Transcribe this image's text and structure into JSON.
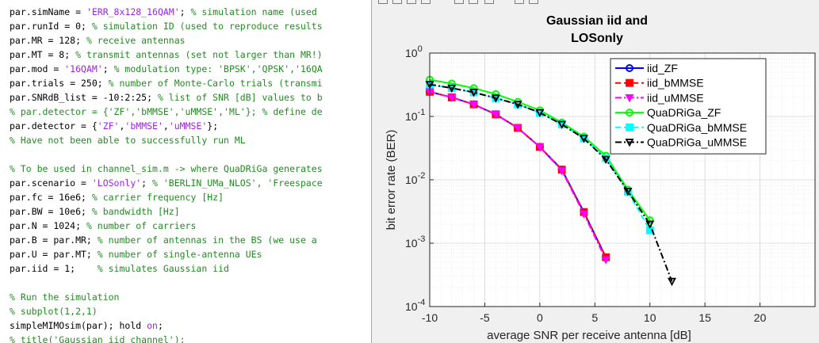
{
  "editor": {
    "lines": [
      {
        "segments": [
          {
            "t": "par.simName = ",
            "k": "code"
          },
          {
            "t": "'ERR_8x128_16QAM'",
            "k": "str"
          },
          {
            "t": "; ",
            "k": "code"
          },
          {
            "t": "% simulation name (used",
            "k": "com"
          }
        ]
      },
      {
        "segments": [
          {
            "t": "par.runId = 0; ",
            "k": "code"
          },
          {
            "t": "% simulation ID (used to reproduce results",
            "k": "com"
          }
        ]
      },
      {
        "segments": [
          {
            "t": "par.MR = 128; ",
            "k": "code"
          },
          {
            "t": "% receive antennas",
            "k": "com"
          }
        ]
      },
      {
        "segments": [
          {
            "t": "par.MT = 8; ",
            "k": "code"
          },
          {
            "t": "% transmit antennas (set not larger than MR!)",
            "k": "com"
          }
        ]
      },
      {
        "segments": [
          {
            "t": "par.mod = ",
            "k": "code"
          },
          {
            "t": "'16QAM'",
            "k": "str"
          },
          {
            "t": "; ",
            "k": "code"
          },
          {
            "t": "% modulation type: 'BPSK','QPSK','16QA",
            "k": "com"
          }
        ]
      },
      {
        "segments": [
          {
            "t": "par.trials = 250; ",
            "k": "code"
          },
          {
            "t": "% number of Monte-Carlo trials (transmi",
            "k": "com"
          }
        ]
      },
      {
        "segments": [
          {
            "t": "par.SNRdB_list = -10:2:25; ",
            "k": "code"
          },
          {
            "t": "% list of SNR [dB] values to b",
            "k": "com"
          }
        ]
      },
      {
        "segments": [
          {
            "t": "% par.detector = {'ZF','bMMSE','uMMSE','ML'}; % define de",
            "k": "com"
          }
        ]
      },
      {
        "segments": [
          {
            "t": "par.detector = {",
            "k": "code"
          },
          {
            "t": "'ZF'",
            "k": "str"
          },
          {
            "t": ",",
            "k": "code"
          },
          {
            "t": "'bMMSE'",
            "k": "str"
          },
          {
            "t": ",",
            "k": "code"
          },
          {
            "t": "'uMMSE'",
            "k": "str"
          },
          {
            "t": "};",
            "k": "code"
          }
        ]
      },
      {
        "segments": [
          {
            "t": "% Have not been able to successfully run ML",
            "k": "com"
          }
        ]
      },
      {
        "segments": []
      },
      {
        "segments": [
          {
            "t": "% To be used in channel_sim.m -> where QuaDRiGa generates",
            "k": "com"
          }
        ]
      },
      {
        "segments": [
          {
            "t": "par.scenario = ",
            "k": "code"
          },
          {
            "t": "'LOSonly'",
            "k": "str"
          },
          {
            "t": "; ",
            "k": "code"
          },
          {
            "t": "% 'BERLIN_UMa_NLOS', 'Freespace",
            "k": "com"
          }
        ]
      },
      {
        "segments": [
          {
            "t": "par.fc = 16e6; ",
            "k": "code"
          },
          {
            "t": "% carrier frequency [Hz]",
            "k": "com"
          }
        ]
      },
      {
        "segments": [
          {
            "t": "par.BW = 10e6; ",
            "k": "code"
          },
          {
            "t": "% bandwidth [Hz]",
            "k": "com"
          }
        ]
      },
      {
        "segments": [
          {
            "t": "par.N = 1024; ",
            "k": "code"
          },
          {
            "t": "% number of carriers",
            "k": "com"
          }
        ]
      },
      {
        "segments": [
          {
            "t": "par.B = par.MR; ",
            "k": "code"
          },
          {
            "t": "% number of antennas in the BS (we use a",
            "k": "com"
          }
        ]
      },
      {
        "segments": [
          {
            "t": "par.U = par.MT; ",
            "k": "code"
          },
          {
            "t": "% number of single-antenna UEs",
            "k": "com"
          }
        ]
      },
      {
        "segments": [
          {
            "t": "par.iid = 1;    ",
            "k": "code"
          },
          {
            "t": "% simulates Gaussian iid",
            "k": "com"
          }
        ]
      },
      {
        "segments": []
      },
      {
        "segments": [
          {
            "t": "% Run the simulation",
            "k": "com"
          }
        ]
      },
      {
        "segments": [
          {
            "t": "% subplot(1,2,1)",
            "k": "com"
          }
        ]
      },
      {
        "segments": [
          {
            "t": "simpleMIMOsim(par); hold ",
            "k": "code"
          },
          {
            "t": "on",
            "k": "str"
          },
          {
            "t": ";",
            "k": "code"
          }
        ]
      },
      {
        "segments": [
          {
            "t": "% title('Gaussian iid channel');",
            "k": "com"
          }
        ]
      }
    ]
  },
  "figure": {
    "toolbar_icons": [
      "print-icon",
      "open-icon",
      "save-icon",
      "link-icon",
      "zoom-icon",
      "pointer-icon",
      "data-cursor-icon",
      "rotate-icon",
      "figure-icon"
    ]
  },
  "chart_data": {
    "type": "line",
    "title": [
      "Gaussian iid and",
      "LOSonly"
    ],
    "xlabel": "average SNR per receive antenna [dB]",
    "ylabel": "bit error rate (BER)",
    "xlim": [
      -10,
      25
    ],
    "ylim": [
      0.0001,
      1
    ],
    "yscale": "log",
    "grid": true,
    "minor_grid": true,
    "legend_position": "top-right",
    "x_ticks": [
      -10,
      -5,
      0,
      5,
      10,
      15,
      20
    ],
    "x_tick_labels": [
      "-10",
      "-5",
      "0",
      "5",
      "10",
      "15",
      "20"
    ],
    "y_ticks": [
      0.0001,
      0.001,
      0.01,
      0.1,
      1
    ],
    "y_tick_labels": [
      {
        "base": "10",
        "exp": "-4"
      },
      {
        "base": "10",
        "exp": "-3"
      },
      {
        "base": "10",
        "exp": "-2"
      },
      {
        "base": "10",
        "exp": "-1"
      },
      {
        "base": "10",
        "exp": "0"
      }
    ],
    "series": [
      {
        "name": "iid_ZF",
        "color": "#0000ff",
        "dash": "solid",
        "marker": "circle",
        "x": [
          -10,
          -8,
          -6,
          -4,
          -2,
          0,
          2,
          4,
          6
        ],
        "y": [
          0.245,
          0.2,
          0.155,
          0.108,
          0.066,
          0.033,
          0.0145,
          0.0031,
          0.0006
        ]
      },
      {
        "name": "iid_bMMSE",
        "color": "#ff0000",
        "dash": "dash",
        "marker": "square",
        "x": [
          -10,
          -8,
          -6,
          -4,
          -2,
          0,
          2,
          4,
          6
        ],
        "y": [
          0.245,
          0.2,
          0.155,
          0.108,
          0.066,
          0.033,
          0.0145,
          0.0031,
          0.0006
        ]
      },
      {
        "name": "iid_uMMSE",
        "color": "#ff00ff",
        "dash": "dashdot",
        "marker": "triangle-down",
        "x": [
          -10,
          -8,
          -6,
          -4,
          -2,
          0,
          2,
          4,
          6
        ],
        "y": [
          0.245,
          0.2,
          0.155,
          0.108,
          0.066,
          0.033,
          0.014,
          0.0029,
          0.00055
        ]
      },
      {
        "name": "QuaDRiGa_ZF",
        "color": "#00ff00",
        "dash": "solid",
        "marker": "circle",
        "x": [
          -10,
          -8,
          -6,
          -4,
          -2,
          0,
          2,
          4,
          6,
          8,
          10
        ],
        "y": [
          0.38,
          0.33,
          0.28,
          0.225,
          0.17,
          0.125,
          0.08,
          0.048,
          0.024,
          0.007,
          0.0023
        ]
      },
      {
        "name": "QuaDRiGa_bMMSE",
        "color": "#00ffff",
        "dash": "dash",
        "marker": "square",
        "x": [
          -10,
          -8,
          -6,
          -4,
          -2,
          0,
          2,
          4,
          6,
          8,
          10
        ],
        "y": [
          0.32,
          0.28,
          0.24,
          0.195,
          0.155,
          0.115,
          0.075,
          0.045,
          0.022,
          0.0065,
          0.0016
        ]
      },
      {
        "name": "QuaDRiGa_uMMSE",
        "color": "#000000",
        "dash": "dashdot",
        "marker": "triangle-down",
        "x": [
          -10,
          -8,
          -6,
          -4,
          -2,
          0,
          2,
          4,
          6,
          8,
          10,
          12
        ],
        "y": [
          0.32,
          0.28,
          0.24,
          0.195,
          0.155,
          0.115,
          0.075,
          0.045,
          0.021,
          0.0066,
          0.002,
          0.00025
        ]
      }
    ]
  }
}
